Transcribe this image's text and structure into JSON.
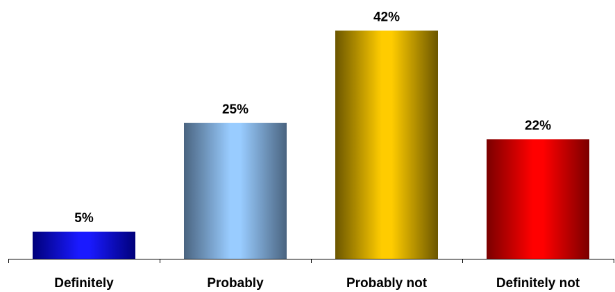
{
  "chart_data": {
    "type": "bar",
    "categories": [
      "Definitely",
      "Probably",
      "Probably not",
      "Definitely not"
    ],
    "values": [
      5,
      25,
      42,
      22
    ],
    "value_labels": [
      "5%",
      "25%",
      "42%",
      "22%"
    ],
    "title": "",
    "xlabel": "",
    "ylabel": "",
    "ylim": [
      0,
      45
    ],
    "grid": false,
    "legend": "none",
    "bar_colors": [
      {
        "edge": "#00007a",
        "center": "#1a1aff"
      },
      {
        "edge": "#4a6480",
        "center": "#99ccff"
      },
      {
        "edge": "#6b5600",
        "center": "#ffcc00"
      },
      {
        "edge": "#7a0000",
        "center": "#ff0000"
      }
    ],
    "axis_color": "#000000"
  }
}
